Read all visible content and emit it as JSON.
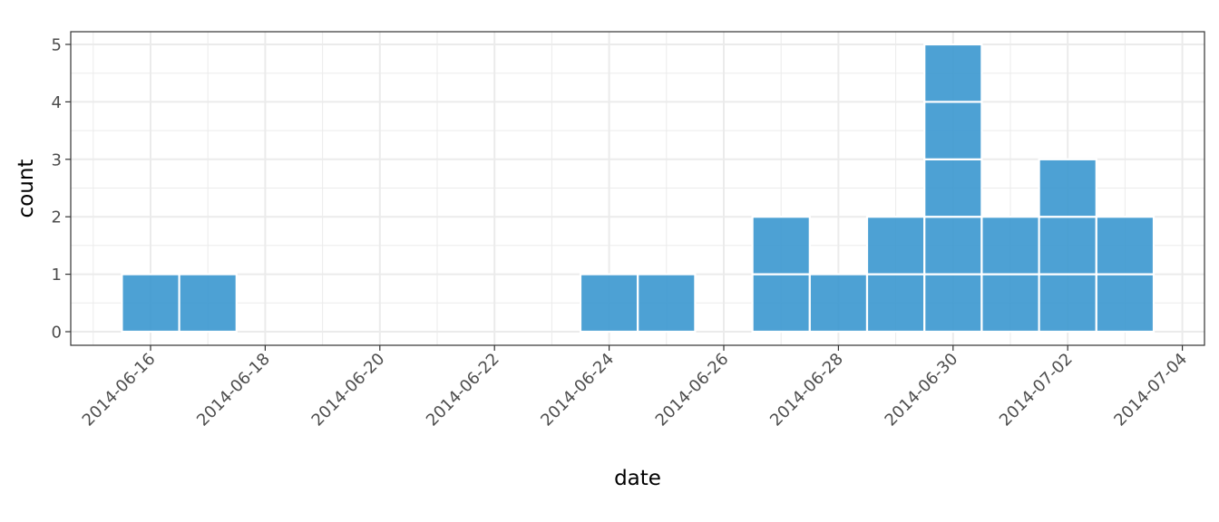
{
  "chart_data": {
    "type": "bar",
    "style": "stacked-unit-squares",
    "xlabel": "date",
    "ylabel": "count",
    "ylim": [
      -0.25,
      5.27
    ],
    "xlim": [
      "2014-06-15",
      "2014-07-04"
    ],
    "grid": true,
    "x_ticks": [
      "2014-06-16",
      "2014-06-18",
      "2014-06-20",
      "2014-06-22",
      "2014-06-24",
      "2014-06-26",
      "2014-06-28",
      "2014-06-30",
      "2014-07-02",
      "2014-07-04"
    ],
    "y_ticks": [
      0,
      1,
      2,
      3,
      4,
      5
    ],
    "categories": [
      "2014-06-16",
      "2014-06-17",
      "2014-06-24",
      "2014-06-25",
      "2014-06-27",
      "2014-06-28",
      "2014-06-29",
      "2014-06-30",
      "2014-07-01",
      "2014-07-02",
      "2014-07-03"
    ],
    "values": [
      1,
      1,
      1,
      1,
      2,
      1,
      2,
      5,
      2,
      3,
      2
    ],
    "bar_color": "#3a97cf",
    "bar_edge_color": "#ffffff"
  }
}
